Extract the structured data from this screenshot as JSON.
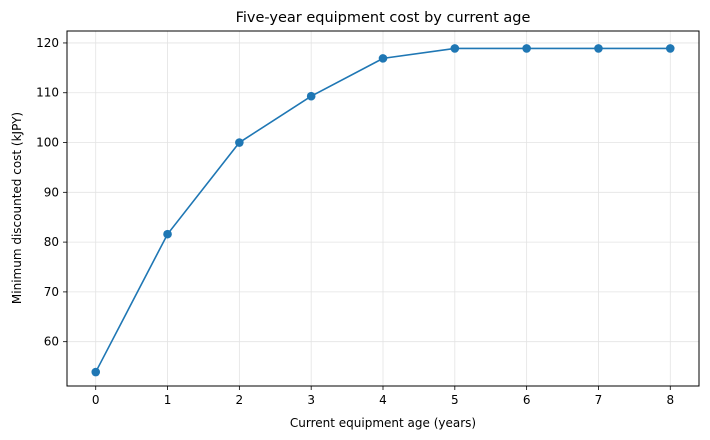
{
  "chart_data": {
    "type": "line",
    "title": "Five-year equipment cost by current age",
    "xlabel": "Current equipment age (years)",
    "ylabel": "Minimum discounted cost (kJPY)",
    "x": [
      0,
      1,
      2,
      3,
      4,
      5,
      6,
      7,
      8
    ],
    "series": [
      {
        "values": [
          53.9,
          81.6,
          100.0,
          109.3,
          116.9,
          118.9,
          118.9,
          118.9,
          118.9
        ]
      }
    ],
    "xlim": [
      -0.4,
      8.4
    ],
    "ylim": [
      51.1,
      122.4
    ],
    "xticks": [
      0,
      1,
      2,
      3,
      4,
      5,
      6,
      7,
      8
    ],
    "yticks": [
      60,
      70,
      80,
      90,
      100,
      110,
      120
    ],
    "grid": true,
    "marker": "circle",
    "color": "#1f77b4"
  }
}
